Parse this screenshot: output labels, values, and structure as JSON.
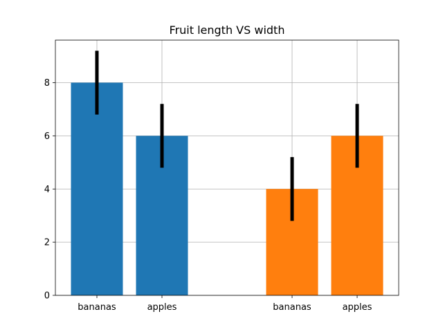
{
  "chart_data": {
    "type": "bar",
    "title": "Fruit length VS width",
    "xlabel": "",
    "ylabel": "",
    "ylim": [
      0,
      9.6
    ],
    "yticks": [
      0,
      2,
      4,
      6,
      8
    ],
    "grid": true,
    "bars": [
      {
        "slot": 0,
        "label": "bananas",
        "value": 8,
        "error": 1.2,
        "color": "#1f77b4"
      },
      {
        "slot": 1,
        "label": "apples",
        "value": 6,
        "error": 1.2,
        "color": "#1f77b4"
      },
      {
        "slot": 3,
        "label": "bananas",
        "value": 4,
        "error": 1.2,
        "color": "#ff7f0e"
      },
      {
        "slot": 4,
        "label": "apples",
        "value": 6,
        "error": 1.2,
        "color": "#ff7f0e"
      }
    ],
    "colors": {
      "series1": "#1f77b4",
      "series2": "#ff7f0e",
      "errorbar": "#000000",
      "grid": "#b0b0b0"
    }
  }
}
